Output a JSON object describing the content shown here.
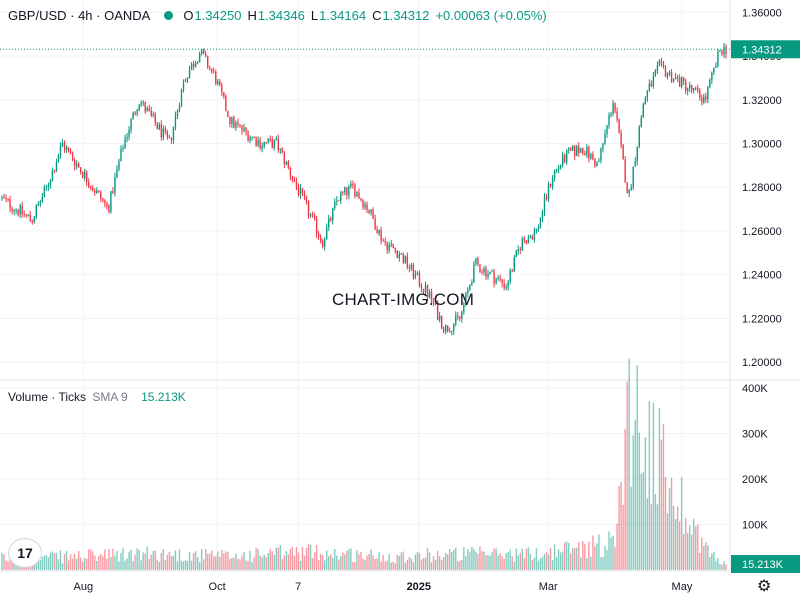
{
  "header": {
    "symbol": "GBP/USD · 4h · OANDA",
    "status_color": "#089981",
    "open_label": "O",
    "open": "1.34250",
    "high_label": "H",
    "high": "1.34346",
    "low_label": "L",
    "low": "1.34164",
    "close_label": "C",
    "close": "1.34312",
    "change": "+0.00063 (+0.05%)"
  },
  "volume_legend": {
    "title": "Volume · Ticks",
    "sma": "SMA 9",
    "value": "15.213K"
  },
  "watermark": "CHART-IMG.COM",
  "logo_text": "17",
  "settings_icon": "gear-icon",
  "colors": {
    "up": "#089981",
    "down": "#f23645",
    "last_price_bg": "#089981"
  },
  "chart_data": [
    {
      "type": "candlestick",
      "title": "GBP/USD · 4h · OANDA",
      "ylim": [
        1.195,
        1.362
      ],
      "y_ticks": [
        "1.36000",
        "1.34000",
        "1.32000",
        "1.30000",
        "1.28000",
        "1.26000",
        "1.24000",
        "1.22000",
        "1.20000"
      ],
      "x_ticks": [
        "Aug",
        "Oct",
        "7",
        "2025",
        "Mar",
        "May"
      ],
      "last_price": "1.34312",
      "series": [
        {
          "name": "close",
          "x": [
            "2024-06-24",
            "2024-07-01",
            "2024-07-08",
            "2024-07-15",
            "2024-07-22",
            "2024-07-29",
            "2024-08-05",
            "2024-08-12",
            "2024-08-19",
            "2024-08-26",
            "2024-09-02",
            "2024-09-09",
            "2024-09-16",
            "2024-09-23",
            "2024-09-30",
            "2024-10-07",
            "2024-10-14",
            "2024-10-21",
            "2024-10-28",
            "2024-11-04",
            "2024-11-11",
            "2024-11-18",
            "2024-11-25",
            "2024-12-02",
            "2024-12-09",
            "2024-12-16",
            "2024-12-23",
            "2024-12-30",
            "2025-01-06",
            "2025-01-13",
            "2025-01-20",
            "2025-01-27",
            "2025-02-03",
            "2025-02-10",
            "2025-02-17",
            "2025-02-24",
            "2025-03-03",
            "2025-03-10",
            "2025-03-17",
            "2025-03-24",
            "2025-03-31",
            "2025-04-07",
            "2025-04-14",
            "2025-04-21",
            "2025-04-28",
            "2025-05-05",
            "2025-05-12",
            "2025-05-19"
          ],
          "values": [
            1.275,
            1.27,
            1.265,
            1.28,
            1.3,
            1.29,
            1.28,
            1.27,
            1.3,
            1.32,
            1.31,
            1.3,
            1.33,
            1.342,
            1.33,
            1.31,
            1.305,
            1.3,
            1.3,
            1.285,
            1.27,
            1.255,
            1.275,
            1.28,
            1.27,
            1.255,
            1.25,
            1.24,
            1.23,
            1.215,
            1.22,
            1.245,
            1.24,
            1.235,
            1.255,
            1.26,
            1.285,
            1.295,
            1.298,
            1.29,
            1.32,
            1.275,
            1.32,
            1.335,
            1.33,
            1.325,
            1.32,
            1.34312
          ]
        },
        {
          "name": "Volume · Ticks",
          "x": [
            "2024-06-24",
            "2024-07-29",
            "2024-09-02",
            "2024-10-07",
            "2024-11-11",
            "2024-12-16",
            "2025-01-20",
            "2025-02-24",
            "2025-03-31",
            "2025-04-07",
            "2025-05-12",
            "2025-05-19"
          ],
          "values": [
            25000,
            30000,
            35000,
            30000,
            40000,
            30000,
            35000,
            35000,
            60000,
            365000,
            50000,
            15213
          ]
        }
      ],
      "volume_ylim": [
        0,
        400000
      ],
      "volume_ticks": [
        "400K",
        "300K",
        "200K",
        "100K"
      ],
      "volume_last": "15.213K"
    }
  ]
}
